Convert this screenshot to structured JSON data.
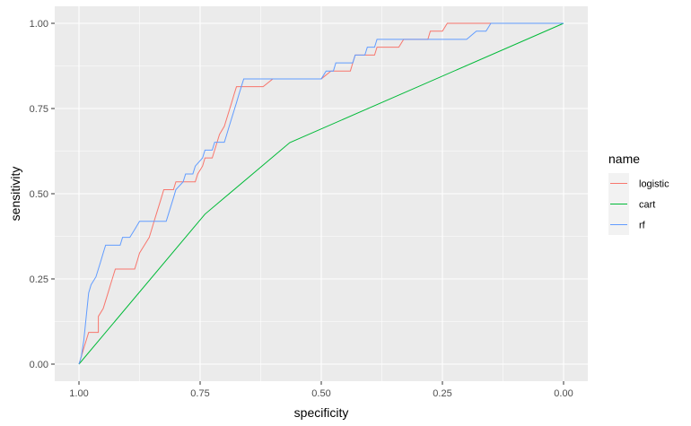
{
  "chart_data": {
    "type": "line",
    "title": "",
    "xlabel": "specificity",
    "ylabel": "sensitivity",
    "x_reversed": true,
    "xlim": [
      1.05,
      -0.05
    ],
    "ylim": [
      -0.05,
      1.05
    ],
    "x_ticks": [
      1.0,
      0.75,
      0.5,
      0.25,
      0.0
    ],
    "x_tick_labels": [
      "1.00",
      "0.75",
      "0.50",
      "0.25",
      "0.00"
    ],
    "y_ticks": [
      0.0,
      0.25,
      0.5,
      0.75,
      1.0
    ],
    "y_tick_labels": [
      "0.00",
      "0.25",
      "0.50",
      "0.75",
      "1.00"
    ],
    "grid": true,
    "legend": {
      "title": "name",
      "position": "right"
    },
    "series": [
      {
        "name": "logistic",
        "color": "#F8766D",
        "points": [
          [
            1.0,
            0.0
          ],
          [
            0.995,
            0.023
          ],
          [
            0.99,
            0.047
          ],
          [
            0.985,
            0.07
          ],
          [
            0.98,
            0.093
          ],
          [
            0.96,
            0.093
          ],
          [
            0.96,
            0.14
          ],
          [
            0.95,
            0.163
          ],
          [
            0.945,
            0.186
          ],
          [
            0.94,
            0.209
          ],
          [
            0.935,
            0.233
          ],
          [
            0.93,
            0.256
          ],
          [
            0.925,
            0.279
          ],
          [
            0.885,
            0.279
          ],
          [
            0.88,
            0.302
          ],
          [
            0.875,
            0.326
          ],
          [
            0.865,
            0.349
          ],
          [
            0.855,
            0.372
          ],
          [
            0.85,
            0.395
          ],
          [
            0.845,
            0.419
          ],
          [
            0.84,
            0.442
          ],
          [
            0.835,
            0.465
          ],
          [
            0.83,
            0.488
          ],
          [
            0.825,
            0.512
          ],
          [
            0.805,
            0.512
          ],
          [
            0.8,
            0.535
          ],
          [
            0.76,
            0.535
          ],
          [
            0.755,
            0.558
          ],
          [
            0.745,
            0.581
          ],
          [
            0.74,
            0.605
          ],
          [
            0.725,
            0.605
          ],
          [
            0.72,
            0.628
          ],
          [
            0.715,
            0.651
          ],
          [
            0.71,
            0.674
          ],
          [
            0.7,
            0.698
          ],
          [
            0.695,
            0.721
          ],
          [
            0.69,
            0.744
          ],
          [
            0.685,
            0.767
          ],
          [
            0.68,
            0.791
          ],
          [
            0.675,
            0.814
          ],
          [
            0.62,
            0.814
          ],
          [
            0.6,
            0.837
          ],
          [
            0.5,
            0.837
          ],
          [
            0.48,
            0.86
          ],
          [
            0.44,
            0.86
          ],
          [
            0.435,
            0.884
          ],
          [
            0.43,
            0.907
          ],
          [
            0.39,
            0.907
          ],
          [
            0.385,
            0.93
          ],
          [
            0.34,
            0.93
          ],
          [
            0.33,
            0.953
          ],
          [
            0.28,
            0.953
          ],
          [
            0.275,
            0.977
          ],
          [
            0.25,
            0.977
          ],
          [
            0.24,
            1.0
          ],
          [
            0.0,
            1.0
          ]
        ]
      },
      {
        "name": "cart",
        "color": "#00BA38",
        "points": [
          [
            1.0,
            0.0
          ],
          [
            0.74,
            0.44
          ],
          [
            0.565,
            0.65
          ],
          [
            0.0,
            1.0
          ]
        ]
      },
      {
        "name": "rf",
        "color": "#619CFF",
        "points": [
          [
            1.0,
            0.0
          ],
          [
            0.995,
            0.023
          ],
          [
            0.99,
            0.07
          ],
          [
            0.985,
            0.14
          ],
          [
            0.98,
            0.209
          ],
          [
            0.975,
            0.233
          ],
          [
            0.965,
            0.256
          ],
          [
            0.96,
            0.279
          ],
          [
            0.955,
            0.302
          ],
          [
            0.95,
            0.326
          ],
          [
            0.945,
            0.349
          ],
          [
            0.915,
            0.349
          ],
          [
            0.91,
            0.372
          ],
          [
            0.895,
            0.372
          ],
          [
            0.885,
            0.395
          ],
          [
            0.875,
            0.419
          ],
          [
            0.82,
            0.419
          ],
          [
            0.815,
            0.442
          ],
          [
            0.81,
            0.465
          ],
          [
            0.805,
            0.488
          ],
          [
            0.8,
            0.512
          ],
          [
            0.785,
            0.535
          ],
          [
            0.78,
            0.558
          ],
          [
            0.765,
            0.558
          ],
          [
            0.76,
            0.581
          ],
          [
            0.745,
            0.605
          ],
          [
            0.74,
            0.628
          ],
          [
            0.725,
            0.628
          ],
          [
            0.72,
            0.651
          ],
          [
            0.7,
            0.651
          ],
          [
            0.695,
            0.674
          ],
          [
            0.69,
            0.698
          ],
          [
            0.685,
            0.721
          ],
          [
            0.68,
            0.744
          ],
          [
            0.675,
            0.767
          ],
          [
            0.67,
            0.791
          ],
          [
            0.665,
            0.814
          ],
          [
            0.66,
            0.837
          ],
          [
            0.5,
            0.837
          ],
          [
            0.49,
            0.86
          ],
          [
            0.475,
            0.86
          ],
          [
            0.47,
            0.884
          ],
          [
            0.435,
            0.884
          ],
          [
            0.43,
            0.907
          ],
          [
            0.41,
            0.907
          ],
          [
            0.405,
            0.93
          ],
          [
            0.39,
            0.93
          ],
          [
            0.385,
            0.953
          ],
          [
            0.2,
            0.953
          ],
          [
            0.18,
            0.977
          ],
          [
            0.16,
            0.977
          ],
          [
            0.15,
            1.0
          ],
          [
            0.0,
            1.0
          ]
        ]
      }
    ]
  }
}
